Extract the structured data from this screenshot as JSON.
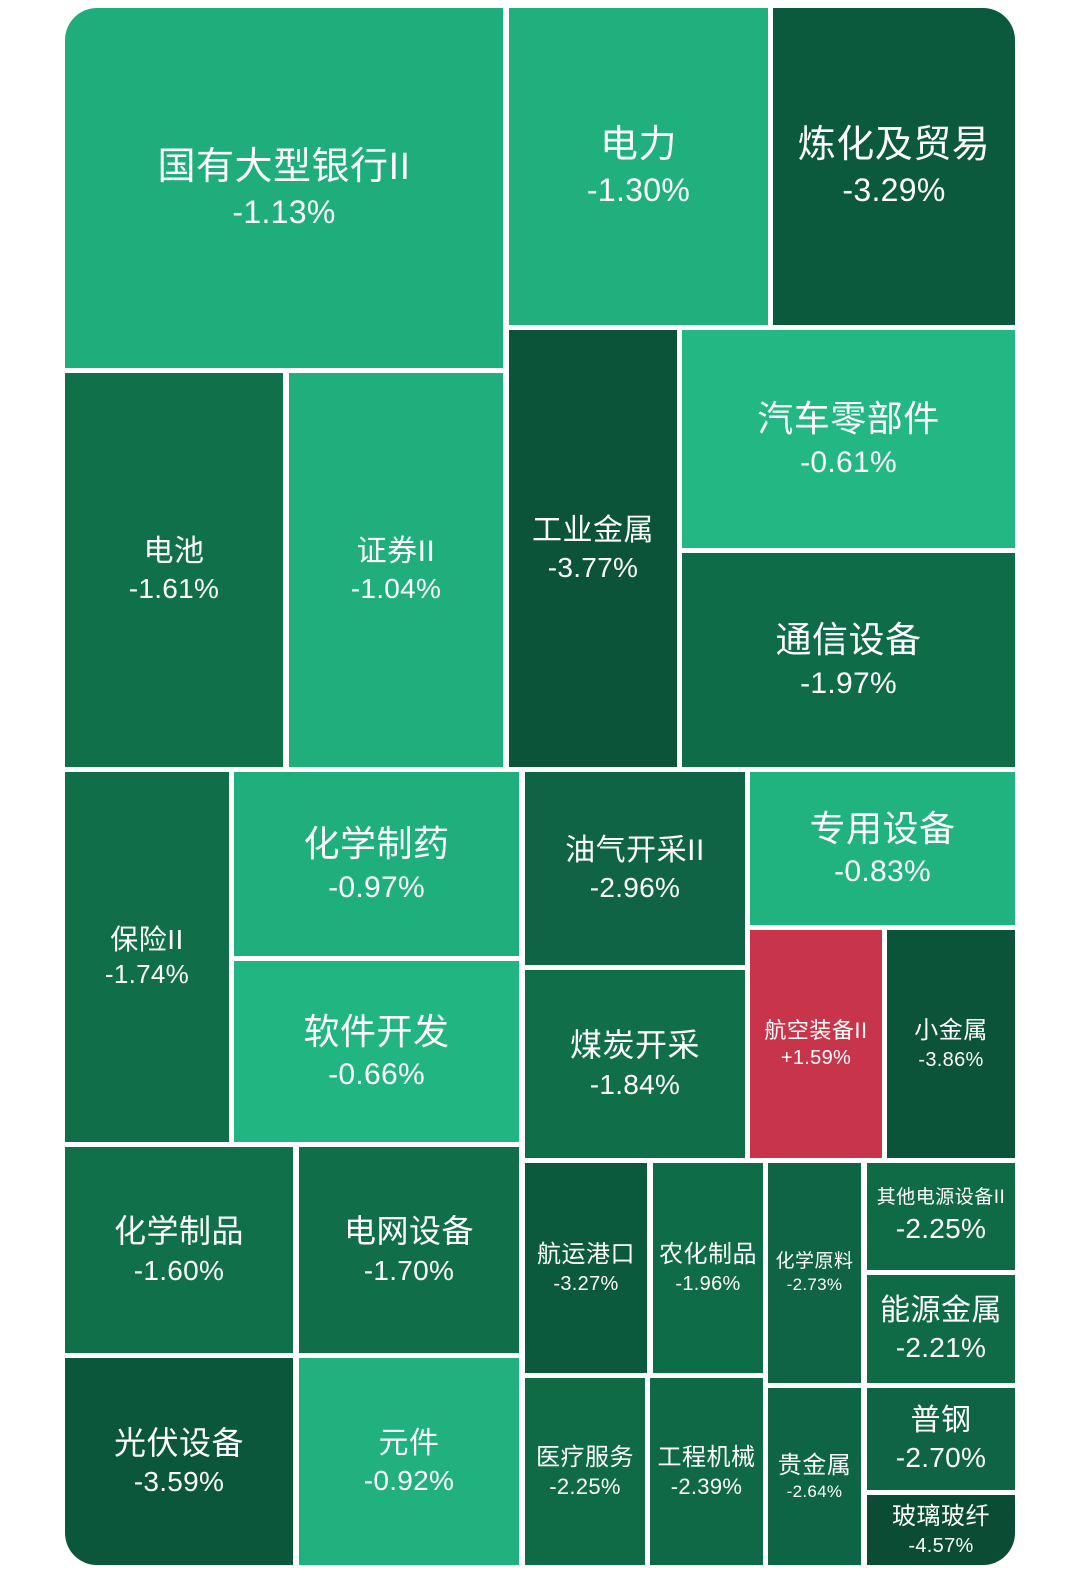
{
  "chart_data": {
    "type": "heatmap",
    "tiles": [
      {
        "name": "国有大型银行II",
        "value": -1.13,
        "color": "#1ead7b"
      },
      {
        "name": "电力",
        "value": -1.3,
        "color": "#20b07d"
      },
      {
        "name": "炼化及贸易",
        "value": -3.29,
        "color": "#0c5a3d"
      },
      {
        "name": "工业金属",
        "value": -3.77,
        "color": "#0b543a"
      },
      {
        "name": "汽车零部件",
        "value": -0.61,
        "color": "#22b783"
      },
      {
        "name": "通信设备",
        "value": -1.97,
        "color": "#0f6c48"
      },
      {
        "name": "电池",
        "value": -1.61,
        "color": "#10704a"
      },
      {
        "name": "证券II",
        "value": -1.04,
        "color": "#1fae7c"
      },
      {
        "name": "保险II",
        "value": -1.74,
        "color": "#106f49"
      },
      {
        "name": "化学制药",
        "value": -0.97,
        "color": "#1faf7d"
      },
      {
        "name": "软件开发",
        "value": -0.66,
        "color": "#21b582"
      },
      {
        "name": "油气开采II",
        "value": -2.96,
        "color": "#0e6444"
      },
      {
        "name": "煤炭开采",
        "value": -1.84,
        "color": "#106e49"
      },
      {
        "name": "专用设备",
        "value": -0.83,
        "color": "#20b380"
      },
      {
        "name": "航空装备II",
        "value": 1.59,
        "color": "#c8354b"
      },
      {
        "name": "小金属",
        "value": -3.86,
        "color": "#0b5339"
      },
      {
        "name": "化学制品",
        "value": -1.6,
        "color": "#10704a"
      },
      {
        "name": "电网设备",
        "value": -1.7,
        "color": "#106f49"
      },
      {
        "name": "光伏设备",
        "value": -3.59,
        "color": "#0b573b"
      },
      {
        "name": "元件",
        "value": -0.92,
        "color": "#20b17e"
      },
      {
        "name": "航运港口",
        "value": -3.27,
        "color": "#0c5a3d"
      },
      {
        "name": "农化制品",
        "value": -1.96,
        "color": "#0f6c48"
      },
      {
        "name": "化学原料",
        "value": -2.73,
        "color": "#0e6444"
      },
      {
        "name": "其他电源设备II",
        "value": -2.25,
        "color": "#0f6a46"
      },
      {
        "name": "能源金属",
        "value": -2.21,
        "color": "#0f6a46"
      },
      {
        "name": "医疗服务",
        "value": -2.25,
        "color": "#0f6a46"
      },
      {
        "name": "工程机械",
        "value": -2.39,
        "color": "#0f6946"
      },
      {
        "name": "贵金属",
        "value": -2.64,
        "color": "#0e6545"
      },
      {
        "name": "普钢",
        "value": -2.7,
        "color": "#0e6444"
      },
      {
        "name": "玻璃玻纤",
        "value": -4.57,
        "color": "#0a4c34"
      }
    ]
  }
}
